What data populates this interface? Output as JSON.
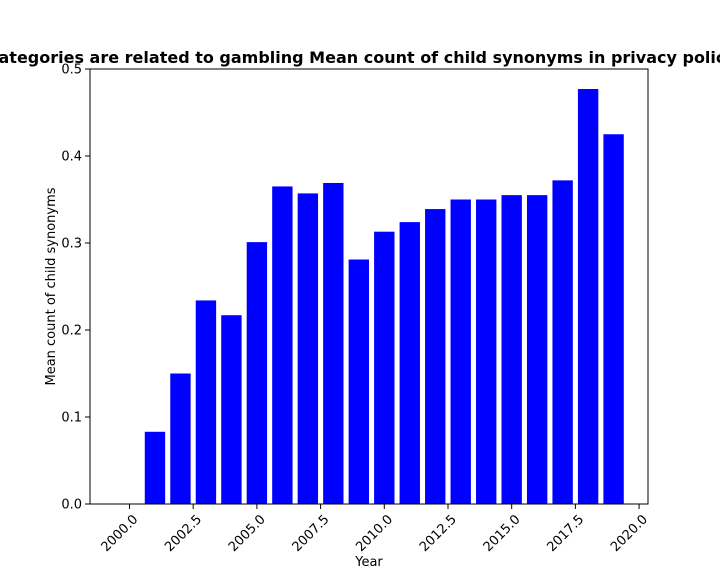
{
  "chart_data": {
    "type": "bar",
    "title": "Categories are related to gambling Mean count of child synonyms in privacy policies",
    "xlabel": "Year",
    "ylabel": "Mean count of child synonyms",
    "x": [
      2001,
      2002,
      2003,
      2004,
      2005,
      2006,
      2007,
      2008,
      2009,
      2010,
      2011,
      2012,
      2013,
      2014,
      2015,
      2016,
      2017,
      2018,
      2019
    ],
    "values": [
      0.083,
      0.15,
      0.234,
      0.217,
      0.301,
      0.365,
      0.357,
      0.369,
      0.281,
      0.313,
      0.324,
      0.339,
      0.35,
      0.35,
      0.355,
      0.355,
      0.372,
      0.477,
      0.425
    ],
    "bar_color": "#0000ff",
    "xlim": [
      1998.45,
      2020.35
    ],
    "ylim": [
      0,
      0.5
    ],
    "xticks": [
      2000.0,
      2002.5,
      2005.0,
      2007.5,
      2010.0,
      2012.5,
      2015.0,
      2017.5,
      2020.0
    ],
    "xtick_labels": [
      "2000.0",
      "2002.5",
      "2005.0",
      "2007.5",
      "2010.0",
      "2012.5",
      "2015.0",
      "2017.5",
      "2020.0"
    ],
    "yticks": [
      0.0,
      0.1,
      0.2,
      0.3,
      0.4,
      0.5
    ],
    "ytick_labels": [
      "0.0",
      "0.1",
      "0.2",
      "0.3",
      "0.4",
      "0.5"
    ],
    "grid": false,
    "legend": false
  }
}
